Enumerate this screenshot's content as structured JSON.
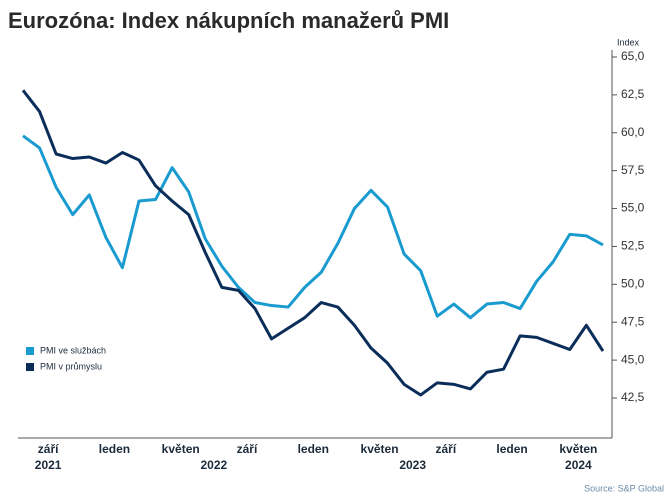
{
  "chart_data": {
    "type": "line",
    "title": "Eurozóna: Index nákupních manažerů PMI",
    "y_axis_label": "Index",
    "source": "Source: S&P Global",
    "categories": [
      null,
      null,
      "září",
      null,
      null,
      null,
      "leden",
      null,
      null,
      null,
      "květen",
      null,
      null,
      null,
      "září",
      null,
      null,
      null,
      "leden",
      null,
      null,
      null,
      "květen",
      null,
      null,
      null,
      "září",
      null,
      null,
      null,
      "leden",
      null,
      null,
      null,
      "květen",
      null
    ],
    "category_years": [
      null,
      null,
      "2021",
      null,
      null,
      null,
      null,
      null,
      null,
      null,
      null,
      null,
      "2022",
      null,
      null,
      null,
      null,
      null,
      null,
      null,
      null,
      null,
      null,
      null,
      "2023",
      null,
      null,
      null,
      null,
      null,
      null,
      null,
      null,
      null,
      "2024",
      null
    ],
    "series": [
      {
        "name": "PMI ve službách",
        "color": "#1a9bd0",
        "values": [
          59.8,
          59.0,
          56.4,
          54.6,
          55.9,
          53.1,
          51.1,
          55.5,
          55.6,
          57.7,
          56.1,
          53.0,
          51.2,
          49.8,
          48.8,
          48.6,
          48.5,
          49.8,
          50.8,
          52.7,
          55.0,
          56.2,
          55.1,
          52.0,
          50.9,
          47.9,
          48.7,
          47.8,
          48.7,
          48.8,
          48.4,
          50.2,
          51.5,
          53.3,
          53.2,
          52.6
        ]
      },
      {
        "name": "PMI v průmyslu",
        "color": "#0b2d5a",
        "values": [
          62.8,
          61.4,
          58.6,
          58.3,
          58.4,
          58.0,
          58.7,
          58.2,
          56.5,
          55.5,
          54.6,
          52.1,
          49.8,
          49.6,
          48.4,
          46.4,
          47.1,
          47.8,
          48.8,
          48.5,
          47.3,
          45.8,
          44.8,
          43.4,
          42.7,
          43.5,
          43.4,
          43.1,
          44.2,
          44.4,
          46.6,
          46.5,
          46.1,
          45.7,
          47.3,
          45.6
        ]
      }
    ],
    "ylim": [
      42.5,
      65
    ],
    "yticks": [
      {
        "value": 42.5,
        "label": "42,5"
      },
      {
        "value": 45,
        "label": "45,0"
      },
      {
        "value": 47.5,
        "label": "47,5"
      },
      {
        "value": 50,
        "label": "50,0"
      },
      {
        "value": 52.5,
        "label": "52,5"
      },
      {
        "value": 55,
        "label": "55,0"
      },
      {
        "value": 57.5,
        "label": "57,5"
      },
      {
        "value": 60,
        "label": "60,0"
      },
      {
        "value": 62.5,
        "label": "62,5"
      },
      {
        "value": 65,
        "label": "65,0"
      }
    ],
    "grid": false,
    "legend": "lower-left"
  }
}
